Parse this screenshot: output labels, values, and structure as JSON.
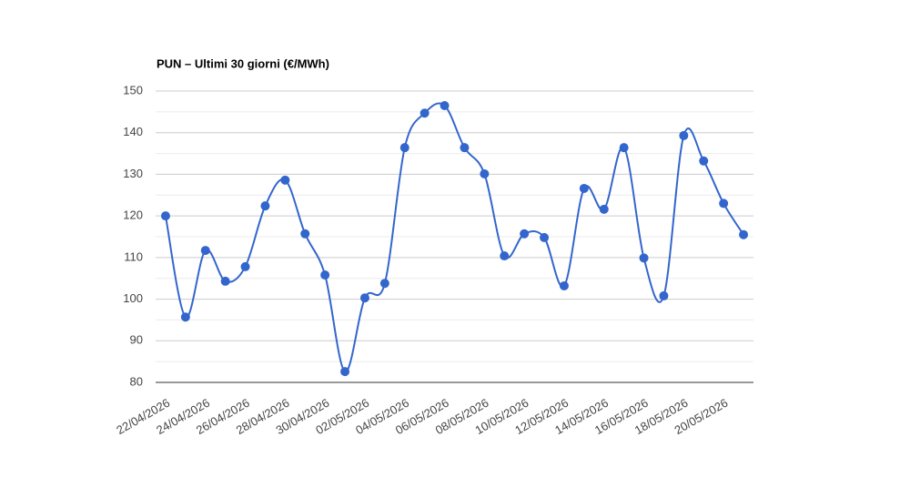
{
  "chart_data": {
    "type": "line",
    "title": "PUN – Ultimi 30 giorni (€/MWh)",
    "categories": [
      "22/04/2026",
      null,
      "24/04/2026",
      null,
      "26/04/2026",
      null,
      "28/04/2026",
      null,
      "30/04/2026",
      null,
      "02/05/2026",
      null,
      "04/05/2026",
      null,
      "06/05/2026",
      null,
      "08/05/2026",
      null,
      "10/05/2026",
      null,
      "12/05/2026",
      null,
      "14/05/2026",
      null,
      "16/05/2026",
      null,
      "18/05/2026",
      null,
      "20/05/2026",
      null
    ],
    "values": [
      120.0,
      95.7,
      111.7,
      104.3,
      107.8,
      122.4,
      128.6,
      115.7,
      105.8,
      82.6,
      100.3,
      103.8,
      136.4,
      144.7,
      146.5,
      136.4,
      130.1,
      110.4,
      115.7,
      114.8,
      103.2,
      126.6,
      121.6,
      136.4,
      109.9,
      100.8,
      139.3,
      133.2,
      123.0,
      115.5
    ],
    "color": "#3366cc",
    "ylim": [
      80,
      150
    ],
    "yticks": [
      80,
      90,
      100,
      110,
      120,
      130,
      140,
      150
    ],
    "grid": true
  }
}
